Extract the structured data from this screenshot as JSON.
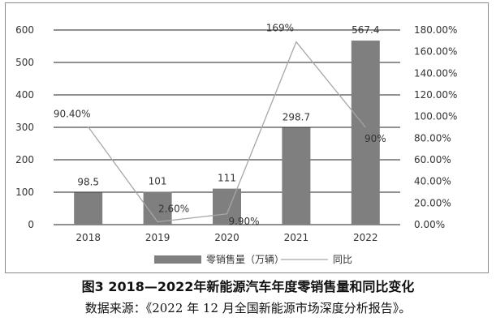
{
  "chart_data": {
    "type": "bar",
    "categories": [
      "2018",
      "2019",
      "2020",
      "2021",
      "2022"
    ],
    "series": [
      {
        "name": "零销售量（万辆）",
        "type": "bar",
        "axis": "left",
        "values": [
          98.5,
          101,
          111,
          298.7,
          567.4
        ],
        "labels": [
          "98.5",
          "101",
          "111",
          "298.7",
          "567.4"
        ],
        "color": "#7f7f7f"
      },
      {
        "name": "同比",
        "type": "line",
        "axis": "right",
        "values": [
          90.4,
          2.6,
          9.9,
          169,
          90
        ],
        "labels": [
          "90.40%",
          "2.60%",
          "9.90%",
          "169%",
          "90%"
        ],
        "color": "#a6a6a6"
      }
    ],
    "y_left": {
      "min": 0,
      "max": 600,
      "ticks": [
        "0",
        "100",
        "200",
        "300",
        "400",
        "500",
        "600"
      ]
    },
    "y_right": {
      "min": 0,
      "max": 180,
      "ticks": [
        "0.00%",
        "20.00%",
        "40.00%",
        "60.00%",
        "80.00%",
        "100.00%",
        "120.00%",
        "140.00%",
        "160.00%",
        "180.00%"
      ]
    },
    "grid": true,
    "legend_position": "bottom"
  },
  "caption": {
    "title": "图3  2018—2022年新能源汽车年度零销售量和同比变化",
    "source": "数据来源：《2022 年 12 月全国新能源市场深度分析报告》。"
  }
}
